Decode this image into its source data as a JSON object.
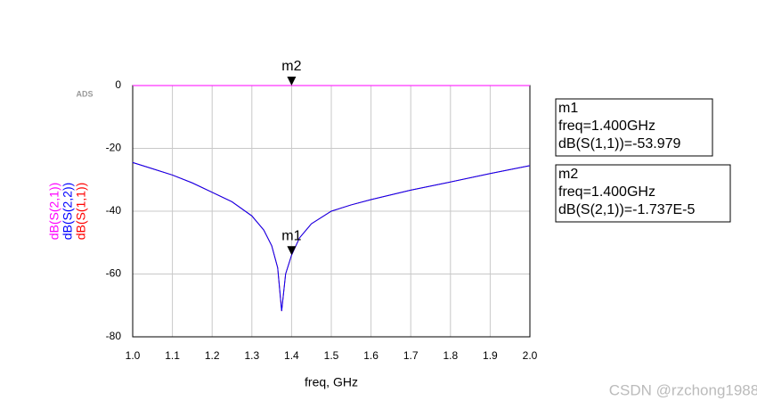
{
  "chart_data": {
    "type": "line",
    "logo": "ADS",
    "x_label": "freq, GHz",
    "x": [
      1.0,
      1.05,
      1.1,
      1.15,
      1.2,
      1.25,
      1.3,
      1.33,
      1.35,
      1.365,
      1.375,
      1.385,
      1.4,
      1.42,
      1.45,
      1.5,
      1.55,
      1.6,
      1.7,
      1.8,
      1.9,
      2.0
    ],
    "series": [
      {
        "name": "dB(S(2,1))",
        "color": "#ff00ff",
        "values": [
          0,
          0,
          0,
          0,
          0,
          0,
          0,
          0,
          0,
          0,
          0,
          0,
          -1.737e-05,
          0,
          0,
          0,
          0,
          0,
          0,
          0,
          0,
          0
        ]
      },
      {
        "name": "dB(S(2,2))",
        "color": "#0000ff",
        "values": [
          -24.5,
          -26.5,
          -28.5,
          -31,
          -34,
          -37,
          -41.5,
          -46,
          -51,
          -58,
          -71.8,
          -60,
          -53.979,
          -48.5,
          -44,
          -40,
          -38,
          -36.3,
          -33.3,
          -30.7,
          -28,
          -25.5
        ]
      },
      {
        "name": "dB(S(1,1))",
        "color": "#ff0000",
        "values": [
          -24.5,
          -26.5,
          -28.5,
          -31,
          -34,
          -37,
          -41.5,
          -46,
          -51,
          -58,
          -71.8,
          -60,
          -53.979,
          -48.5,
          -44,
          -40,
          -38,
          -36.3,
          -33.3,
          -30.7,
          -28,
          -25.5
        ]
      }
    ],
    "xlim": [
      1.0,
      2.0
    ],
    "xticks": [
      {
        "value": 1.0,
        "label": "1.0"
      },
      1.1,
      1.2,
      1.3,
      1.4,
      1.5,
      1.6,
      1.7,
      1.8,
      1.9,
      {
        "value": 2.0,
        "label": "2.0"
      }
    ],
    "ylim": [
      -80,
      0
    ],
    "yticks": [
      -80,
      -60,
      -40,
      -20,
      0
    ],
    "grid": true,
    "markers": [
      {
        "name": "m2",
        "x": 1.4,
        "y": -1.737e-05,
        "lines": [
          "m2",
          "freq=1.400GHz",
          "dB(S(2,1))=-1.737E-5"
        ]
      },
      {
        "name": "m1",
        "x": 1.4,
        "y": -53.979,
        "lines": [
          "m1",
          "freq=1.400GHz",
          "dB(S(1,1))=-53.979"
        ]
      }
    ],
    "watermark": "CSDN @rzchong1988"
  }
}
